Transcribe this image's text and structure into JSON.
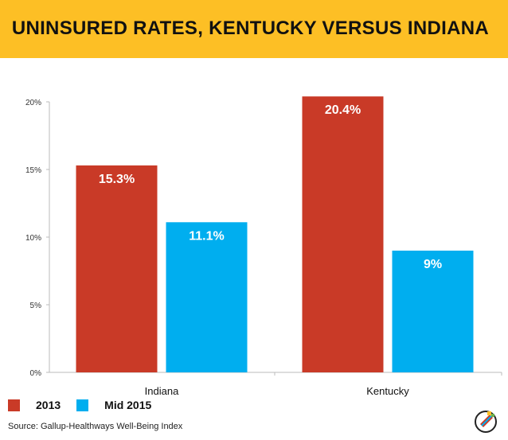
{
  "header": {
    "title": "UNINSURED RATES, KENTUCKY VERSUS INDIANA"
  },
  "chart_data": {
    "type": "bar",
    "categories": [
      "Indiana",
      "Kentucky"
    ],
    "series": [
      {
        "name": "2013",
        "values": [
          15.3,
          20.4
        ],
        "labels": [
          "15.3%",
          "20.4%"
        ],
        "color": "#c93a27"
      },
      {
        "name": "Mid 2015",
        "values": [
          11.1,
          9
        ],
        "labels": [
          "11.1%",
          "9%"
        ],
        "color": "#00aeef"
      }
    ],
    "ylim": [
      0,
      20
    ],
    "yticks": [
      0,
      5,
      10,
      15,
      20
    ],
    "ytick_labels": [
      "0%",
      "5%",
      "10%",
      "15%",
      "20%"
    ],
    "grid": false,
    "legend_position": "bottom-left"
  },
  "legend": {
    "items": [
      "2013",
      "Mid 2015"
    ]
  },
  "source": "Source: Gallup-Healthways Well-Being Index",
  "logo": {
    "icon": "politifact-logo-icon"
  }
}
